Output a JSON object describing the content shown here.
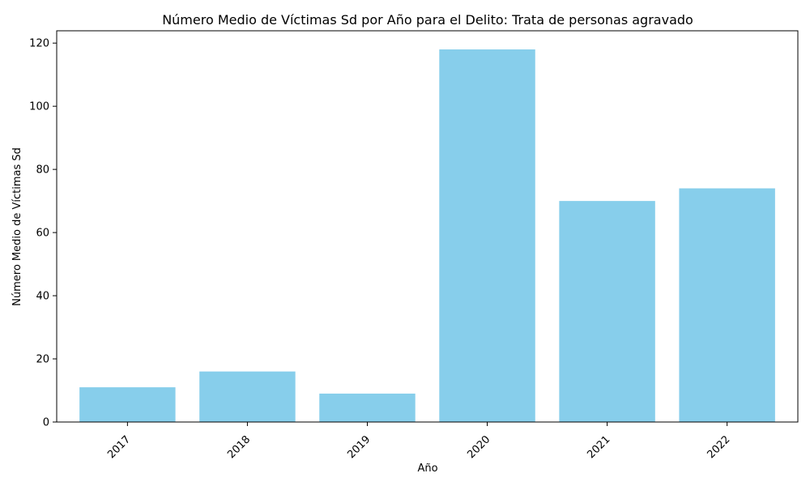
{
  "chart_data": {
    "type": "bar",
    "title": "Número Medio de Víctimas Sd por Año para el Delito: Trata de personas agravado",
    "xlabel": "Año",
    "ylabel": "Número Medio de Víctimas Sd",
    "categories": [
      "2017",
      "2018",
      "2019",
      "2020",
      "2021",
      "2022"
    ],
    "values": [
      11,
      16,
      9,
      118,
      70,
      74
    ],
    "ylim": [
      0,
      123.9
    ],
    "yticks": [
      0,
      20,
      40,
      60,
      80,
      100,
      120
    ],
    "bar_color": "#87CEEB",
    "grid": false,
    "x_tick_rotation": "45 degrees"
  }
}
